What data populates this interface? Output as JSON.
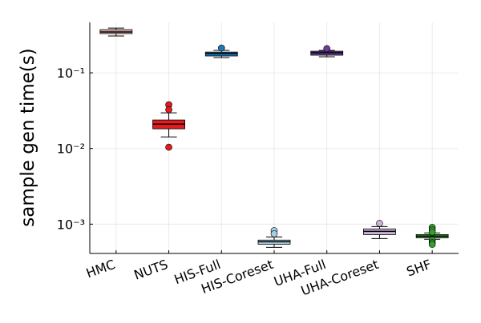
{
  "chart_data": {
    "type": "box",
    "ylabel": "sample gen time(s)",
    "log_y": true,
    "grid": true,
    "categories": [
      "HMC",
      "NUTS",
      "HIS-Full",
      "HIS-Coreset",
      "UHA-Full",
      "UHA-Coreset",
      "SHF"
    ],
    "boxes": [
      {
        "whislo": 0.307,
        "q1": 0.33,
        "med": 0.346,
        "q3": 0.372,
        "whishi": 0.39,
        "color": "#d9a7a0"
      },
      {
        "whislo": 0.0142,
        "q1": 0.0182,
        "med": 0.021,
        "q3": 0.0238,
        "whishi": 0.0296,
        "fliers": [
          0.0378,
          0.0326,
          0.0104
        ],
        "color": "#e41a1c"
      },
      {
        "whislo": 0.159,
        "q1": 0.167,
        "med": 0.18,
        "q3": 0.188,
        "whishi": 0.198,
        "fliers": [
          0.213
        ],
        "color": "#1f78b4"
      },
      {
        "whislo": 0.000493,
        "q1": 0.000543,
        "med": 0.000585,
        "q3": 0.000616,
        "whishi": 0.000678,
        "fliers": [
          0.000822,
          0.000746
        ],
        "color": "#a6cee3"
      },
      {
        "whislo": 0.163,
        "q1": 0.171,
        "med": 0.184,
        "q3": 0.193,
        "whishi": 0.198,
        "fliers": [
          0.209
        ],
        "color": "#6a3d9a"
      },
      {
        "whislo": 0.000646,
        "q1": 0.000728,
        "med": 0.000803,
        "q3": 0.000865,
        "whishi": 0.000929,
        "fliers": [
          0.001026
        ],
        "color": "#cab2d6"
      },
      {
        "whislo": 0.000631,
        "q1": 0.00066,
        "med": 0.000693,
        "q3": 0.000728,
        "whishi": 0.000765,
        "fliers": [
          0.000905,
          0.000837,
          0.000786,
          0.000612,
          0.000568,
          0.000541
        ],
        "color": "#33a02c"
      }
    ],
    "ylim": [
      0.00041,
      0.464
    ],
    "yticks": [
      {
        "value": 0.001,
        "label": "10⁻³"
      },
      {
        "value": 0.01,
        "label": "10⁻²"
      },
      {
        "value": 0.1,
        "label": "10⁻¹"
      }
    ]
  }
}
